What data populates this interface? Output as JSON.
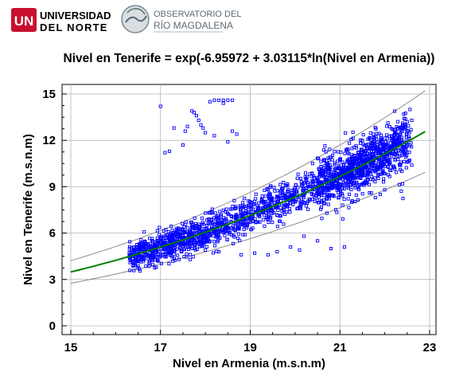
{
  "header": {
    "uninorte_logo": {
      "mark": "UN",
      "line1": "UNIVERSIDAD",
      "line2": "DEL NORTE"
    },
    "observatorio_logo": {
      "line1": "OBSERVATORIO DEL",
      "line2": "RÍO MAGDALENA"
    }
  },
  "colors": {
    "points": "#0000ff",
    "fit_line": "#008000",
    "limit_lines": "#808080",
    "logo_red": "#c8102e"
  },
  "chart_data": {
    "type": "scatter",
    "title": "Nivel en Tenerife = exp(-6.95972 + 3.03115*ln(Nivel en Armenia))",
    "xlabel": "Nivel en Armenia (m.s.n.m)",
    "ylabel": "Nivel en Tenerife (m.s.n.m)",
    "xlim": [
      15,
      23
    ],
    "ylim": [
      -0.5,
      15.5
    ],
    "xticks": [
      "15",
      "17",
      "19",
      "21",
      "23"
    ],
    "yticks": [
      "0",
      "3",
      "6",
      "9",
      "12",
      "15"
    ],
    "grid": true,
    "legend": "none",
    "model": {
      "intercept": -6.95972,
      "slope": 3.03115,
      "form": "exp(a + b*ln(x))"
    },
    "fit_range": [
      15,
      22.9
    ],
    "limit_factor": 0.21,
    "point_clusters": [
      {
        "x_range": [
          16.3,
          22.6
        ],
        "spread": 0.75,
        "count": 1400
      },
      {
        "x_range": [
          20.5,
          22.6
        ],
        "spread": 1.1,
        "count": 500
      },
      {
        "x_range": [
          21.2,
          22.6
        ],
        "spread": 0.5,
        "count": 220,
        "offset": 1.2
      }
    ],
    "outlier_points": [
      [
        17.7,
        13.9
      ],
      [
        17.75,
        13.8
      ],
      [
        17.8,
        13.6
      ],
      [
        17.85,
        13.3
      ],
      [
        17.9,
        13.0
      ],
      [
        17.95,
        12.8
      ],
      [
        17.6,
        12.9
      ],
      [
        17.55,
        12.6
      ],
      [
        17.3,
        12.8
      ],
      [
        17.5,
        11.7
      ],
      [
        17.0,
        14.2
      ],
      [
        18.2,
        14.6
      ],
      [
        18.3,
        14.6
      ],
      [
        18.4,
        14.6
      ],
      [
        18.5,
        14.6
      ],
      [
        18.6,
        14.6
      ],
      [
        18.1,
        14.5
      ],
      [
        18.4,
        14.4
      ],
      [
        18.6,
        12.6
      ],
      [
        18.7,
        12.4
      ],
      [
        18.2,
        12.3
      ],
      [
        18.0,
        12.5
      ],
      [
        18.5,
        11.9
      ],
      [
        17.2,
        11.3
      ],
      [
        17.1,
        11.2
      ],
      [
        21.1,
        5.1
      ],
      [
        20.8,
        5.0
      ],
      [
        20.5,
        5.5
      ],
      [
        20.2,
        5.8
      ],
      [
        22.0,
        8.8
      ],
      [
        21.7,
        8.6
      ],
      [
        21.9,
        8.5
      ],
      [
        22.5,
        10.6
      ],
      [
        22.6,
        10.4
      ],
      [
        22.4,
        13.0
      ],
      [
        22.5,
        13.2
      ],
      [
        22.6,
        13.3
      ],
      [
        18.8,
        4.6
      ],
      [
        19.1,
        4.7
      ],
      [
        19.4,
        4.6
      ],
      [
        19.6,
        4.8
      ],
      [
        20.1,
        4.9
      ],
      [
        17.3,
        5.2
      ],
      [
        17.5,
        5.6
      ],
      [
        17.7,
        5.3
      ],
      [
        16.8,
        4.3
      ],
      [
        17.0,
        4.6
      ],
      [
        18.0,
        4.9
      ],
      [
        18.3,
        4.8
      ],
      [
        19.9,
        5.1
      ]
    ]
  }
}
